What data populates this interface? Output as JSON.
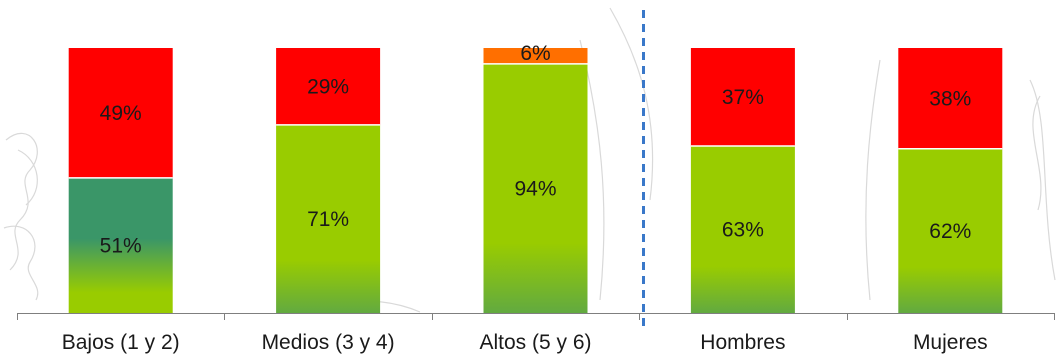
{
  "chart_data": {
    "type": "bar",
    "stacked": true,
    "percent": true,
    "categories": [
      "Bajos (1 y 2)",
      "Medios (3 y 4)",
      "Altos (5 y 6)",
      "Hombres",
      "Mujeres"
    ],
    "series": [
      {
        "values": [
          51,
          71,
          94,
          63,
          62
        ],
        "labels": [
          "51%",
          "71%",
          "94%",
          "63%",
          "62%"
        ]
      },
      {
        "values": [
          49,
          29,
          6,
          37,
          38
        ],
        "labels": [
          "49%",
          "29%",
          "6%",
          "37%",
          "38%"
        ]
      }
    ],
    "ylim": [
      0,
      100
    ],
    "title": "",
    "xlabel": "",
    "ylabel": "",
    "grid": false,
    "group_separator_after": 2
  },
  "colors": {
    "bottom_green": "#99cc00",
    "bottom_green_dark": "#3a9668",
    "top_red": "#ff0000",
    "top_orange": "#ff6f00",
    "separator": "#3a78c9"
  }
}
